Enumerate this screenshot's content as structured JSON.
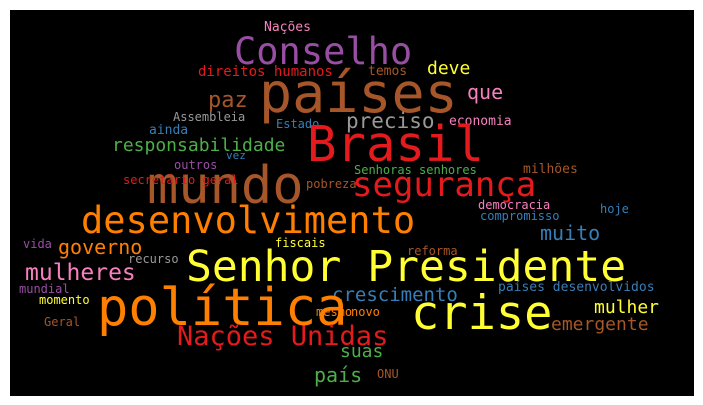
{
  "palette": {
    "background": "#000000",
    "red": "#e41a1c",
    "blue": "#377eb8",
    "green": "#4daf4a",
    "purple": "#984ea3",
    "orange": "#ff7f00",
    "yellow": "#ffff33",
    "brown": "#a65628",
    "pink": "#f781bf",
    "gray": "#999999"
  },
  "words": [
    {
      "text": "Nações",
      "color": "pink"
    },
    {
      "text": "Conselho",
      "color": "purple"
    },
    {
      "text": "países",
      "color": "brown"
    },
    {
      "text": "direitos humanos",
      "color": "red"
    },
    {
      "text": "temos",
      "color": "brown"
    },
    {
      "text": "deve",
      "color": "yellow"
    },
    {
      "text": "paz",
      "color": "brown"
    },
    {
      "text": "que",
      "color": "pink"
    },
    {
      "text": "Assembleia",
      "color": "gray"
    },
    {
      "text": "Estado",
      "color": "blue"
    },
    {
      "text": "preciso",
      "color": "gray"
    },
    {
      "text": "economia",
      "color": "pink"
    },
    {
      "text": "ainda",
      "color": "blue"
    },
    {
      "text": "Brasil",
      "color": "red"
    },
    {
      "text": "responsabilidade",
      "color": "green"
    },
    {
      "text": "vez",
      "color": "blue"
    },
    {
      "text": "outros",
      "color": "purple"
    },
    {
      "text": "Senhoras senhores",
      "color": "green"
    },
    {
      "text": "milhões",
      "color": "brown"
    },
    {
      "text": "mundo",
      "color": "brown"
    },
    {
      "text": "segurança",
      "color": "red"
    },
    {
      "text": "secretário geral",
      "color": "red"
    },
    {
      "text": "pobreza",
      "color": "brown"
    },
    {
      "text": "democracia",
      "color": "pink"
    },
    {
      "text": "hoje",
      "color": "blue"
    },
    {
      "text": "desenvolvimento",
      "color": "orange"
    },
    {
      "text": "compromisso",
      "color": "blue"
    },
    {
      "text": "muito",
      "color": "blue"
    },
    {
      "text": "governo",
      "color": "orange"
    },
    {
      "text": "vida",
      "color": "purple"
    },
    {
      "text": "fiscais",
      "color": "yellow"
    },
    {
      "text": "reforma",
      "color": "brown"
    },
    {
      "text": "recurso",
      "color": "gray"
    },
    {
      "text": "Senhor Presidente",
      "color": "yellow"
    },
    {
      "text": "mulheres",
      "color": "pink"
    },
    {
      "text": "mundial",
      "color": "purple"
    },
    {
      "text": "países desenvolvidos",
      "color": "blue"
    },
    {
      "text": "crescimento",
      "color": "blue"
    },
    {
      "text": "momento",
      "color": "yellow"
    },
    {
      "text": "política",
      "color": "orange"
    },
    {
      "text": "crise",
      "color": "yellow"
    },
    {
      "text": "mulher",
      "color": "yellow"
    },
    {
      "text": "mesmo",
      "color": "orange"
    },
    {
      "text": "novo",
      "color": "orange"
    },
    {
      "text": "emergente",
      "color": "brown"
    },
    {
      "text": "Geral",
      "color": "brown"
    },
    {
      "text": "Nações Unidas",
      "color": "red"
    },
    {
      "text": "suas",
      "color": "green"
    },
    {
      "text": "país",
      "color": "green"
    },
    {
      "text": "ONU",
      "color": "brown"
    }
  ]
}
